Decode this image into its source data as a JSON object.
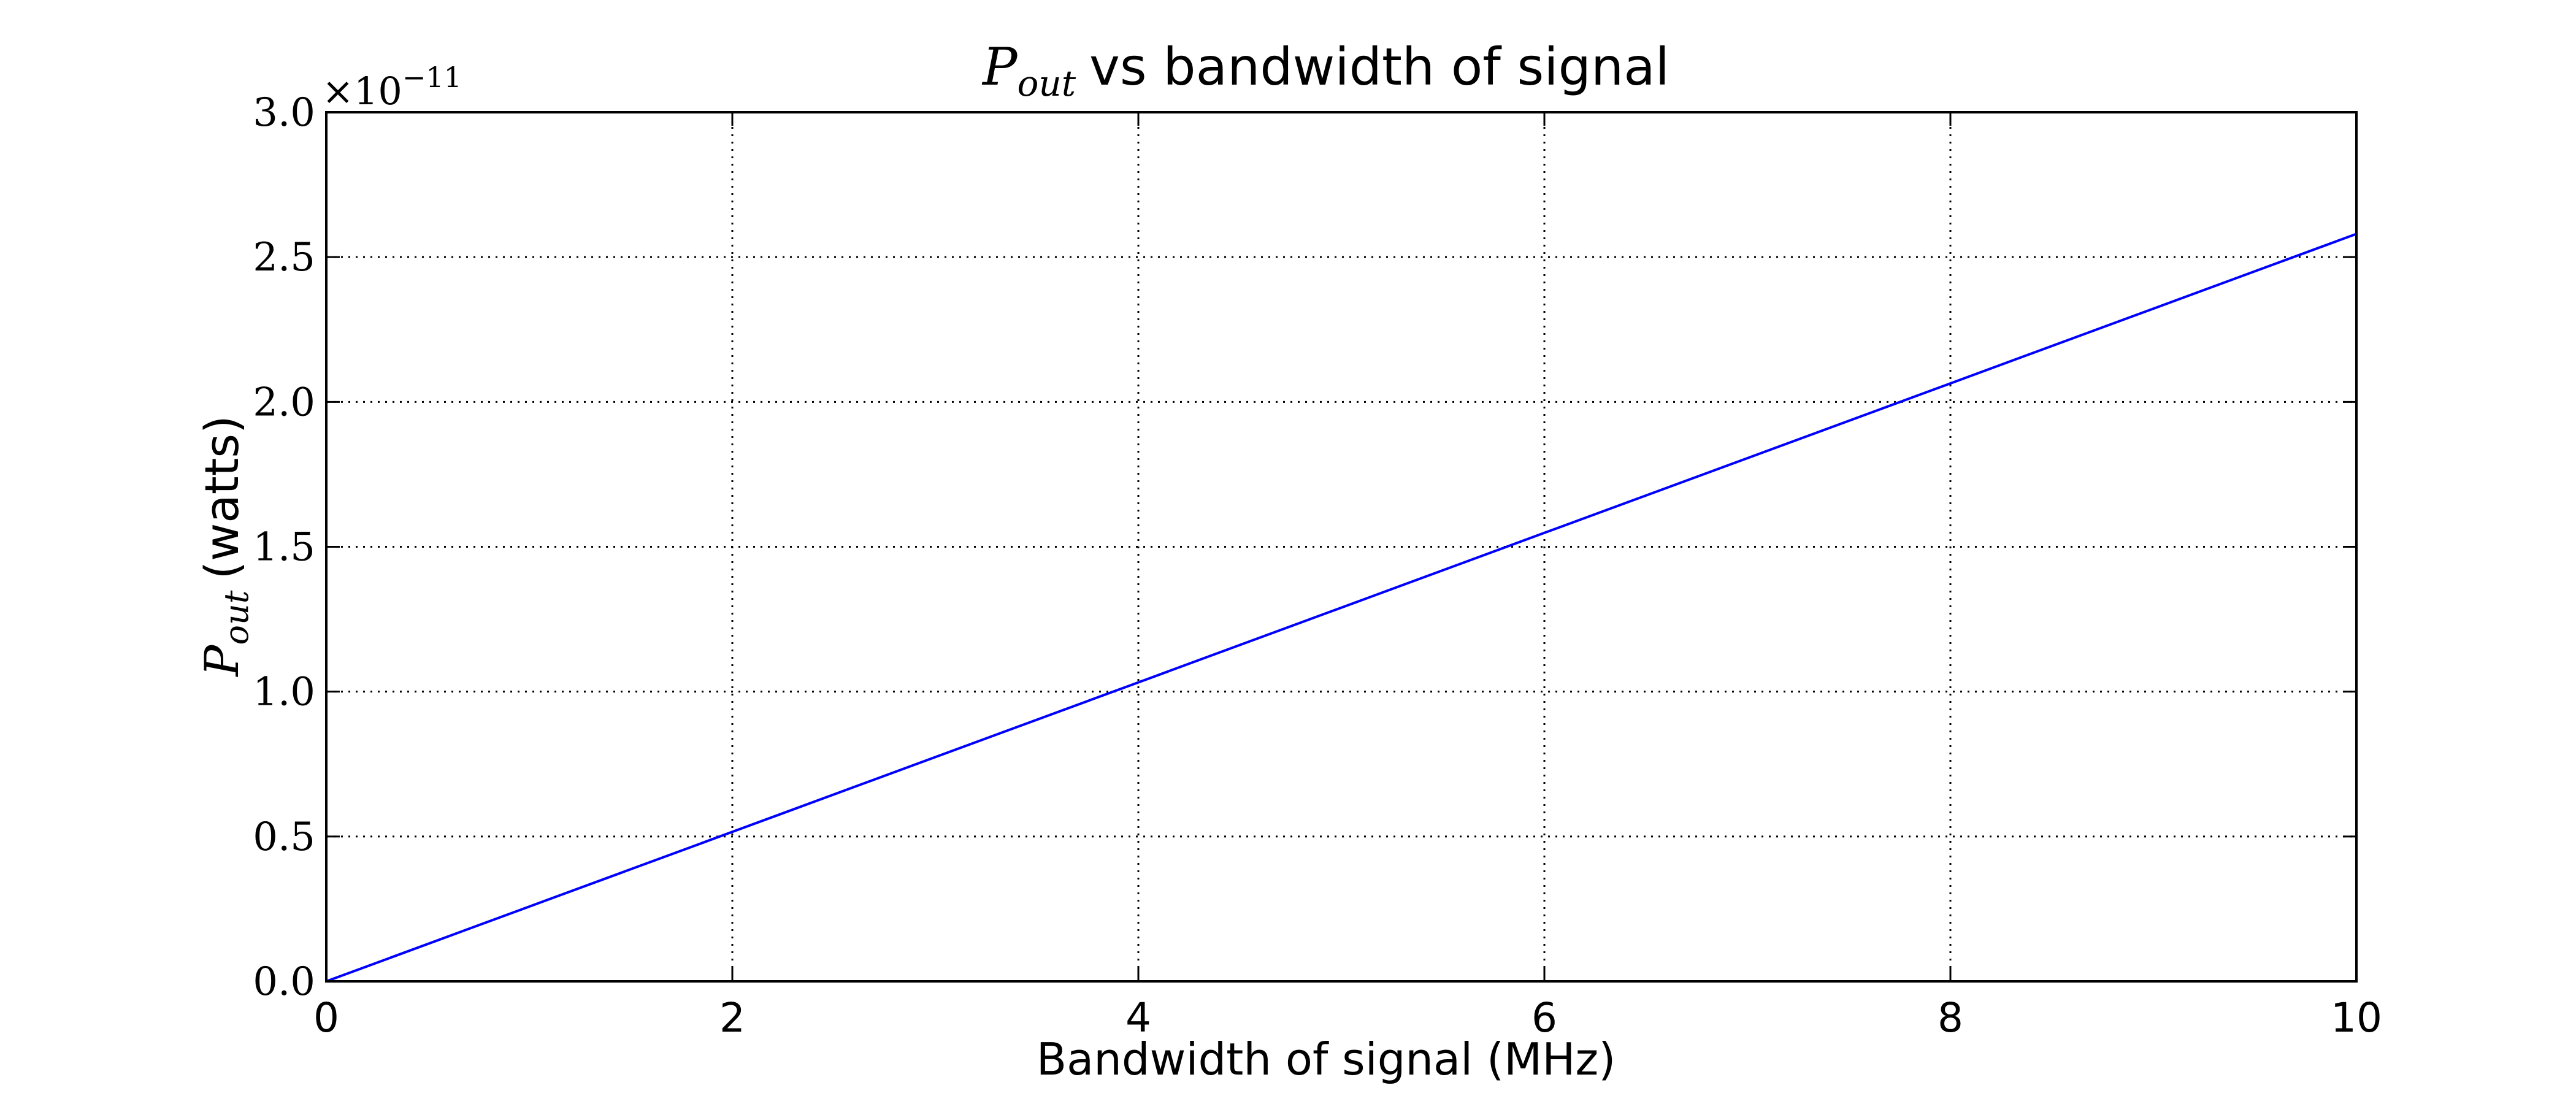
{
  "chart_data": {
    "type": "line",
    "title": {
      "symbol": "P",
      "subscript": "out",
      "text": "vs bandwidth of signal"
    },
    "xlabel": "Bandwidth of signal (MHz)",
    "ylabel": {
      "symbol": "P",
      "subscript": "out",
      "text": "(watts)"
    },
    "x_ticks": [
      "0",
      "2",
      "4",
      "6",
      "8",
      "10"
    ],
    "y_ticks": [
      "0.0",
      "0.5",
      "1.0",
      "1.5",
      "2.0",
      "2.5",
      "3.0"
    ],
    "y_scale_multiplier": {
      "prefix": "×10",
      "exponent": "−11"
    },
    "xlim": [
      0,
      10
    ],
    "ylim": [
      0,
      3e-11
    ],
    "grid": true,
    "line_color": "#0000ff",
    "series": [
      {
        "x": [
          0,
          1,
          2,
          3,
          4,
          5,
          6,
          7,
          8,
          9,
          10
        ],
        "y": [
          0,
          2.58e-12,
          5.16e-12,
          7.74e-12,
          1.032e-11,
          1.29e-11,
          1.548e-11,
          1.806e-11,
          2.064e-11,
          2.322e-11,
          2.58e-11
        ]
      }
    ]
  }
}
